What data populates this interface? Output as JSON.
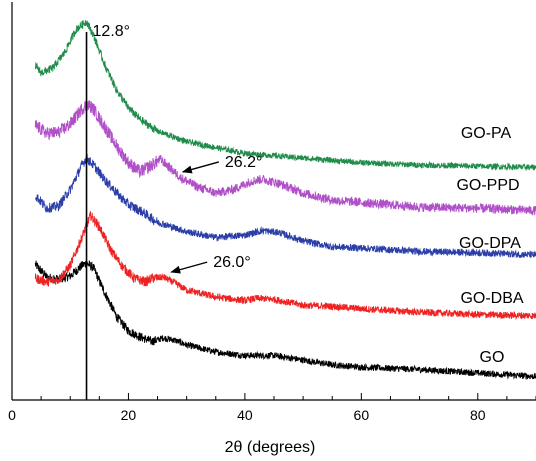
{
  "chart_data": {
    "type": "line",
    "title": "",
    "xlabel": "2θ (degrees)",
    "ylabel": "",
    "xlim": [
      0,
      90
    ],
    "x_ticks": [
      0,
      20,
      40,
      60,
      80
    ],
    "x_tick_labels": [
      "0",
      "20",
      "40",
      "60",
      "80"
    ],
    "y_ticks": [],
    "grid": false,
    "legend": "none",
    "series": [
      {
        "name": "GO",
        "color": "#000000",
        "x": [
          4,
          6,
          8,
          10,
          12,
          12.8,
          14,
          16,
          18,
          20,
          22,
          24,
          26,
          28,
          30,
          35,
          40,
          45,
          50,
          55,
          60,
          70,
          80,
          90
        ],
        "y": [
          0.99,
          0.88,
          0.86,
          0.89,
          0.98,
          1.0,
          0.96,
          0.74,
          0.54,
          0.42,
          0.37,
          0.33,
          0.36,
          0.34,
          0.3,
          0.24,
          0.21,
          0.21,
          0.17,
          0.13,
          0.11,
          0.09,
          0.06,
          0.03
        ],
        "noise": 0.028
      },
      {
        "name": "GO-DBA",
        "color": "#ee2222",
        "x": [
          4,
          6,
          8,
          10,
          12,
          13.5,
          15,
          17,
          19,
          21,
          23,
          24,
          26,
          28,
          30,
          35,
          40,
          42,
          45,
          50,
          55,
          60,
          70,
          80,
          90
        ],
        "y": [
          0.87,
          0.84,
          0.86,
          0.98,
          1.22,
          1.41,
          1.31,
          1.11,
          0.97,
          0.87,
          0.84,
          0.87,
          0.88,
          0.83,
          0.77,
          0.71,
          0.68,
          0.7,
          0.69,
          0.64,
          0.63,
          0.61,
          0.58,
          0.56,
          0.55
        ],
        "noise": 0.03
      },
      {
        "name": "GO-DPA",
        "color": "#2b3ea8",
        "x": [
          4,
          6,
          8,
          10,
          12,
          12.8,
          14,
          16,
          18,
          20,
          22,
          25,
          30,
          35,
          40,
          43,
          46,
          50,
          55,
          60,
          70,
          80,
          90
        ],
        "y": [
          1.58,
          1.47,
          1.49,
          1.63,
          1.84,
          1.9,
          1.84,
          1.71,
          1.6,
          1.5,
          1.45,
          1.35,
          1.27,
          1.22,
          1.24,
          1.28,
          1.26,
          1.19,
          1.14,
          1.13,
          1.1,
          1.09,
          1.07
        ],
        "noise": 0.03
      },
      {
        "name": "GO-PPD",
        "color": "#b04fc8",
        "x": [
          4,
          6,
          8,
          10,
          12,
          13,
          14,
          16,
          18,
          20,
          22,
          24,
          25.5,
          27,
          29,
          32,
          35,
          38,
          41,
          43,
          46,
          50,
          55,
          60,
          70,
          80,
          90
        ],
        "y": [
          2.18,
          2.11,
          2.12,
          2.19,
          2.32,
          2.36,
          2.32,
          2.16,
          2.0,
          1.86,
          1.78,
          1.84,
          1.89,
          1.82,
          1.73,
          1.65,
          1.6,
          1.63,
          1.7,
          1.72,
          1.68,
          1.6,
          1.54,
          1.52,
          1.48,
          1.47,
          1.45
        ],
        "noise": 0.04
      },
      {
        "name": "GO-PA",
        "color": "#1f8c4a",
        "x": [
          4,
          5,
          7,
          9,
          11,
          12.8,
          14,
          16,
          18,
          20,
          22,
          25,
          30,
          35,
          40,
          45,
          50,
          60,
          70,
          80,
          90
        ],
        "y": [
          2.69,
          2.63,
          2.67,
          2.8,
          3.0,
          3.07,
          2.95,
          2.69,
          2.48,
          2.33,
          2.23,
          2.13,
          2.04,
          1.99,
          1.94,
          1.92,
          1.9,
          1.86,
          1.84,
          1.83,
          1.82
        ],
        "noise": 0.025
      }
    ],
    "annotations": [
      {
        "text": "12.8°",
        "x": 12.8,
        "kind": "vertical-line"
      },
      {
        "text": "26.2°",
        "x": 29,
        "series": "GO-PPD",
        "kind": "arrow"
      },
      {
        "text": "26.0°",
        "x": 27,
        "series": "GO-DBA",
        "kind": "arrow"
      }
    ]
  }
}
